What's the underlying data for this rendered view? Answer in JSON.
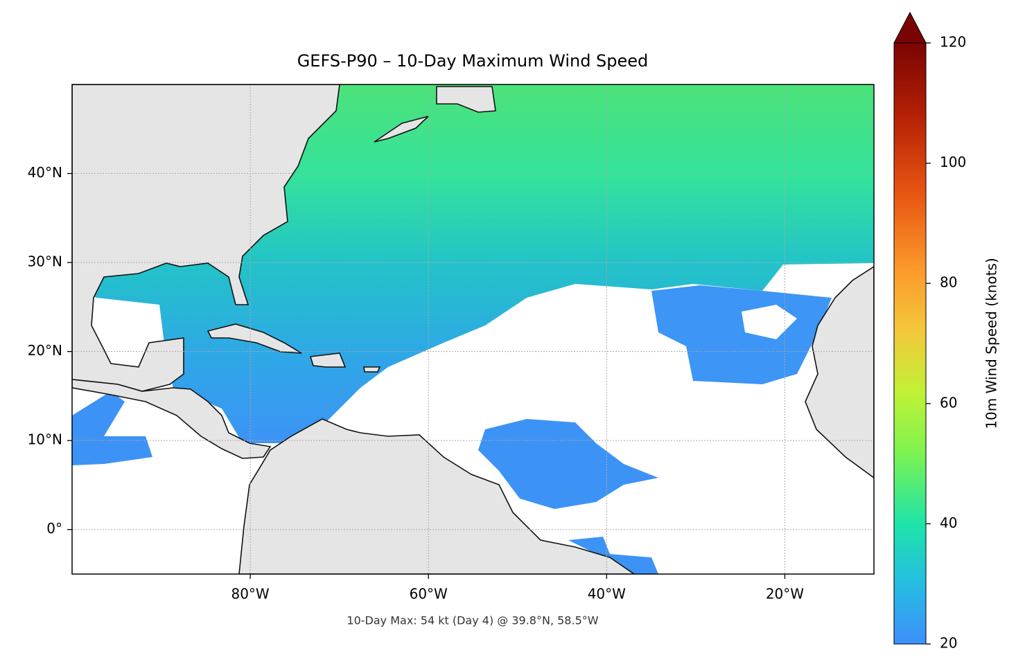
{
  "chart_data": {
    "type": "map",
    "title": "GEFS-P90 – 10-Day Maximum Wind Speed",
    "annotation": "10-Day Max: 54 kt (Day 4) @ 39.8°N, 58.5°W",
    "xlim": [
      -100,
      -10
    ],
    "ylim": [
      -5,
      50
    ],
    "xticks": [
      {
        "value": -80,
        "label": "80°W"
      },
      {
        "value": -60,
        "label": "60°W"
      },
      {
        "value": -40,
        "label": "40°W"
      },
      {
        "value": -20,
        "label": "20°W"
      }
    ],
    "yticks": [
      {
        "value": 0,
        "label": "0°"
      },
      {
        "value": 10,
        "label": "10°N"
      },
      {
        "value": 20,
        "label": "20°N"
      },
      {
        "value": 30,
        "label": "30°N"
      },
      {
        "value": 40,
        "label": "40°N"
      }
    ],
    "grid": true,
    "colorbar": {
      "label": "10m Wind Speed (knots)",
      "lim": [
        20,
        120
      ],
      "ticks": [
        20,
        40,
        60,
        80,
        100,
        120
      ],
      "extend": "max"
    }
  }
}
